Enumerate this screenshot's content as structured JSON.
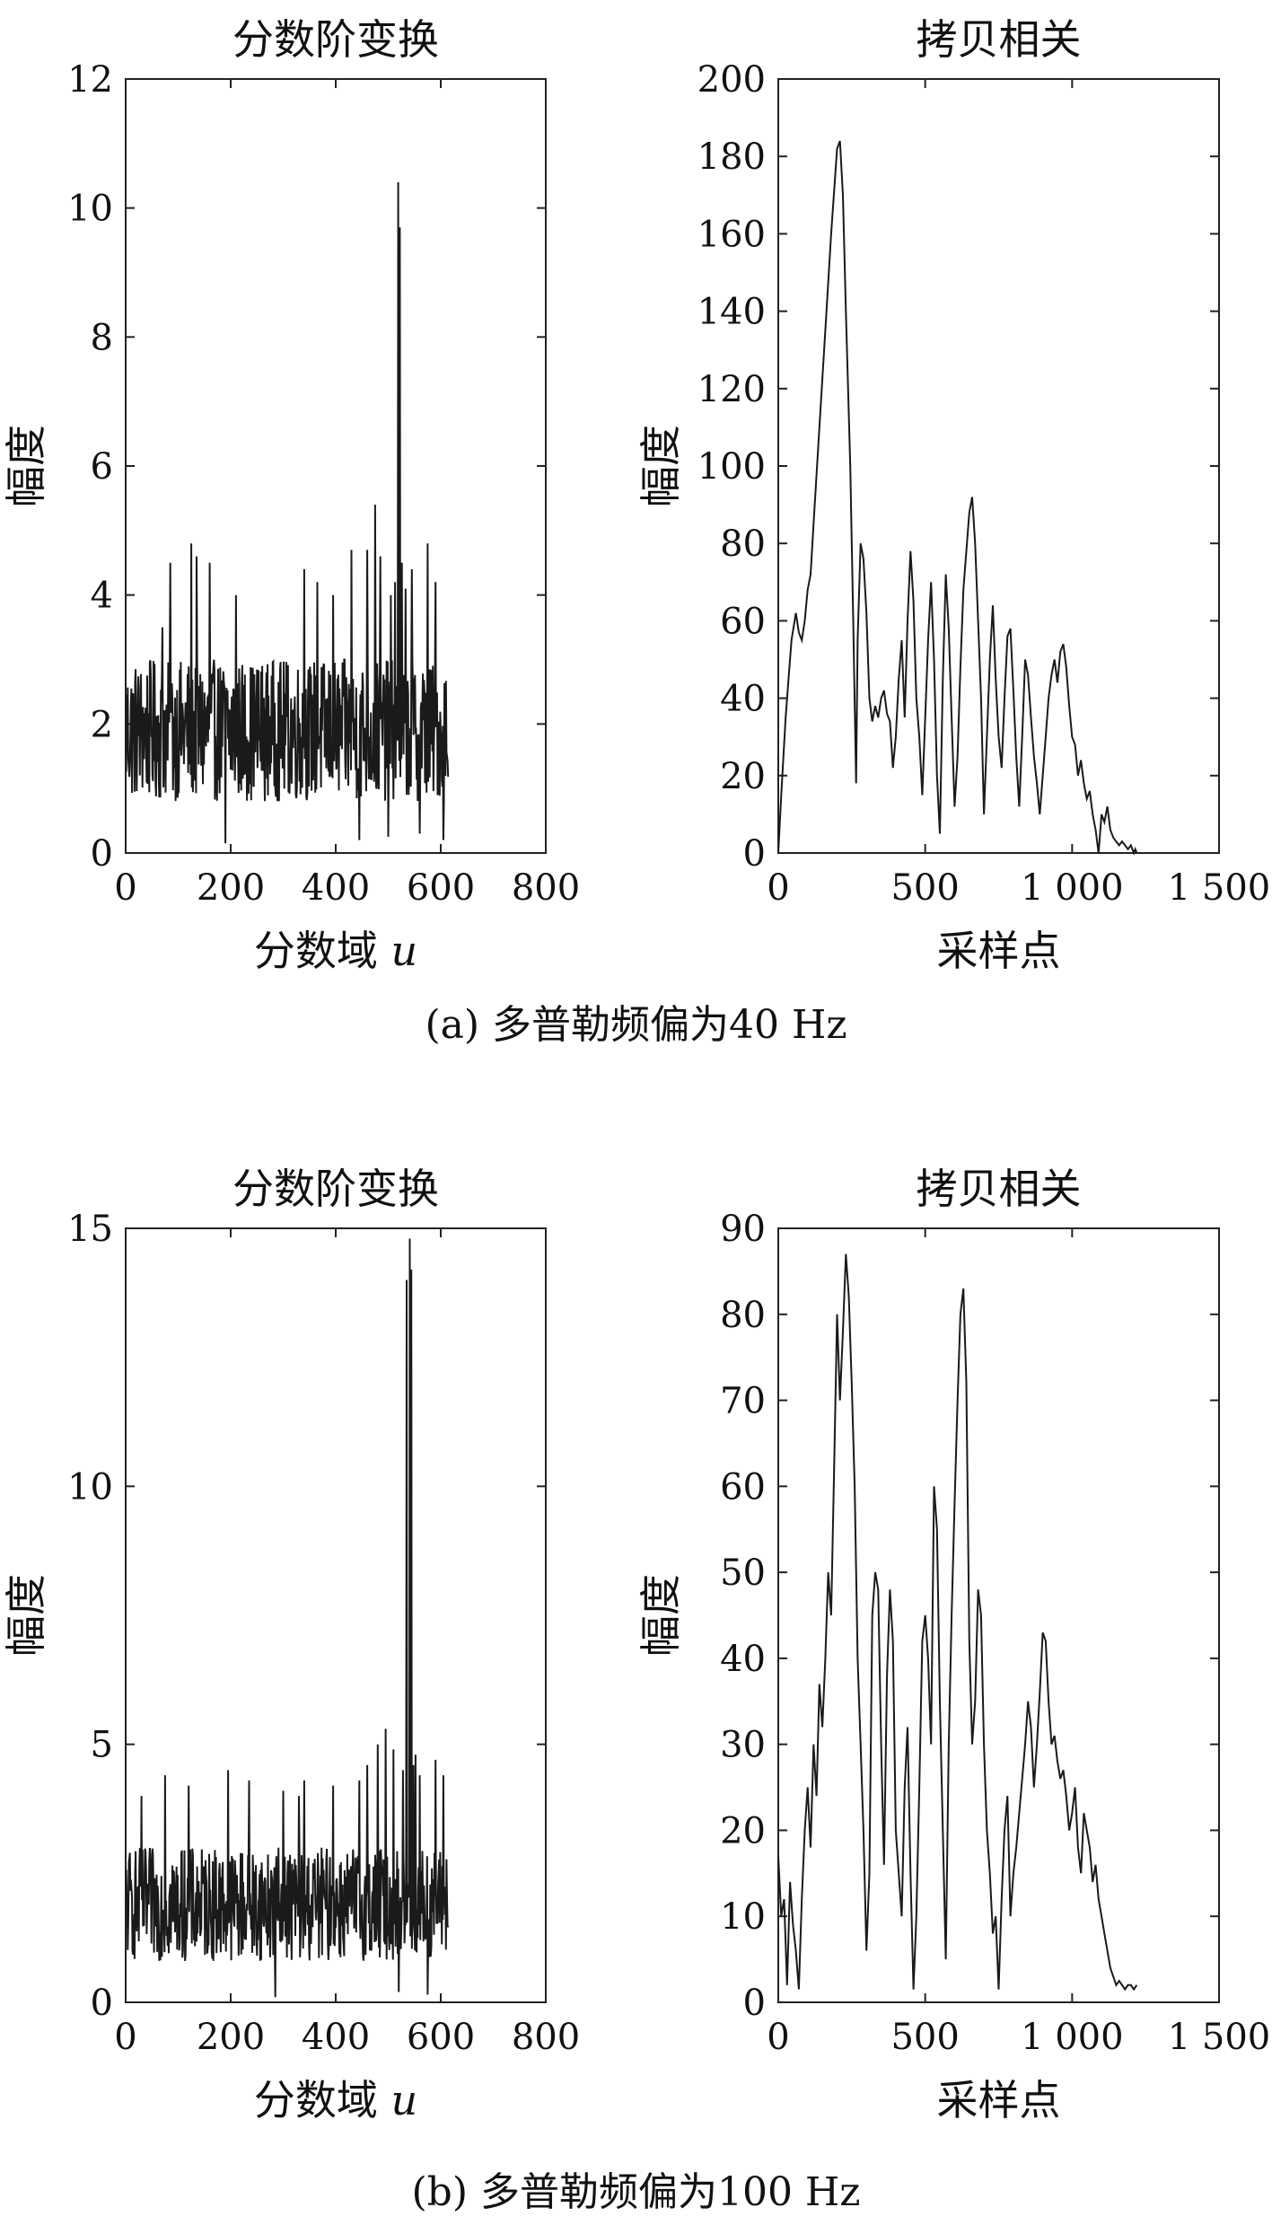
{
  "captions": {
    "a": "(a) 多普勒频偏为40 Hz",
    "b": "(b) 多普勒频偏为100 Hz"
  },
  "chart_data": [
    {
      "id": "a-frft",
      "type": "line",
      "title": "分数阶变换",
      "xlabel": "分数域 u",
      "ylabel": "幅度",
      "xlim": [
        0,
        800
      ],
      "ylim": [
        0,
        12
      ],
      "xticks": [
        0,
        200,
        400,
        600,
        800
      ],
      "yticks": [
        0,
        2,
        4,
        6,
        8,
        10,
        12
      ],
      "xtick_labels": [
        "0",
        "200",
        "400",
        "600",
        "800"
      ],
      "ytick_labels": [
        "0",
        "2",
        "4",
        "6",
        "8",
        "10",
        "12"
      ],
      "series": [
        {
          "noise": {
            "n": 615,
            "x_start": 0,
            "x_end": 614,
            "mean": 1.9,
            "amp": 1.1,
            "min": 0.15,
            "max": 4.8
          },
          "x": [
            70,
            85,
            125,
            135,
            160,
            190,
            210,
            340,
            365,
            395,
            430,
            445,
            460,
            475,
            485,
            500,
            505,
            513,
            519,
            522,
            526,
            533,
            545,
            560,
            575,
            590,
            605,
            612
          ],
          "y": [
            3.5,
            4.5,
            4.8,
            4.6,
            4.5,
            0.15,
            4.0,
            4.4,
            4.2,
            4.0,
            4.7,
            0.2,
            4.7,
            5.4,
            4.6,
            0.25,
            4.0,
            4.2,
            10.4,
            9.7,
            4.5,
            4.1,
            4.4,
            0.3,
            4.8,
            4.2,
            0.2,
            1.5
          ]
        }
      ]
    },
    {
      "id": "a-xcorr",
      "type": "line",
      "title": "拷贝相关",
      "xlabel": "采样点",
      "ylabel": "幅度",
      "xlim": [
        0,
        1500
      ],
      "ylim": [
        0,
        200
      ],
      "xticks": [
        0,
        500,
        1000,
        1500
      ],
      "yticks": [
        0,
        20,
        40,
        60,
        80,
        100,
        120,
        140,
        160,
        180,
        200
      ],
      "xtick_labels": [
        "0",
        "500",
        "1 000",
        "1 500"
      ],
      "ytick_labels": [
        "0",
        "20",
        "40",
        "60",
        "80",
        "100",
        "120",
        "140",
        "160",
        "180",
        "200"
      ],
      "series": [
        {
          "x": [
            0,
            10,
            25,
            45,
            60,
            70,
            80,
            90,
            100,
            110,
            120,
            140,
            160,
            180,
            200,
            210,
            220,
            230,
            245,
            255,
            265,
            270,
            280,
            290,
            300,
            310,
            320,
            330,
            340,
            350,
            360,
            370,
            380,
            390,
            400,
            410,
            420,
            430,
            440,
            450,
            460,
            470,
            480,
            490,
            500,
            510,
            520,
            530,
            540,
            550,
            560,
            570,
            580,
            590,
            600,
            610,
            620,
            630,
            640,
            650,
            660,
            670,
            680,
            690,
            700,
            710,
            720,
            730,
            740,
            750,
            760,
            770,
            780,
            790,
            800,
            810,
            820,
            830,
            840,
            850,
            860,
            870,
            880,
            890,
            900,
            910,
            920,
            930,
            940,
            950,
            960,
            970,
            980,
            990,
            1000,
            1010,
            1020,
            1030,
            1040,
            1050,
            1060,
            1070,
            1080,
            1090,
            1100,
            1110,
            1120,
            1130,
            1140,
            1150,
            1160,
            1170,
            1180,
            1190,
            1200,
            1210,
            1215,
            1220
          ],
          "y": [
            0,
            15,
            35,
            55,
            62,
            57,
            55,
            60,
            68,
            72,
            85,
            110,
            135,
            160,
            182,
            184,
            170,
            140,
            100,
            60,
            18,
            55,
            80,
            76,
            62,
            40,
            34,
            38,
            35,
            40,
            42,
            36,
            34,
            22,
            30,
            45,
            55,
            35,
            60,
            78,
            65,
            40,
            30,
            15,
            35,
            55,
            70,
            50,
            20,
            5,
            45,
            72,
            58,
            35,
            12,
            25,
            48,
            68,
            78,
            88,
            92,
            80,
            60,
            40,
            10,
            30,
            50,
            64,
            45,
            30,
            22,
            40,
            56,
            58,
            42,
            25,
            12,
            30,
            50,
            46,
            35,
            25,
            18,
            10,
            20,
            30,
            40,
            46,
            50,
            44,
            52,
            54,
            48,
            38,
            30,
            28,
            20,
            24,
            18,
            14,
            16,
            10,
            6,
            0,
            10,
            8,
            12,
            6,
            4,
            3,
            2,
            3,
            2,
            1,
            2,
            0,
            1,
            0
          ]
        }
      ]
    },
    {
      "id": "b-frft",
      "type": "line",
      "title": "分数阶变换",
      "xlabel": "分数域 u",
      "ylabel": "幅度",
      "xlim": [
        0,
        800
      ],
      "ylim": [
        0,
        15
      ],
      "xticks": [
        0,
        200,
        400,
        600,
        800
      ],
      "yticks": [
        0,
        5,
        10,
        15
      ],
      "xtick_labels": [
        "0",
        "200",
        "400",
        "600",
        "800"
      ],
      "ytick_labels": [
        "0",
        "5",
        "10",
        "15"
      ],
      "series": [
        {
          "noise": {
            "n": 615,
            "x_start": 0,
            "x_end": 614,
            "mean": 1.9,
            "amp": 1.1,
            "min": 0.1,
            "max": 4.6
          },
          "x": [
            30,
            75,
            120,
            195,
            235,
            285,
            300,
            330,
            340,
            395,
            445,
            460,
            480,
            495,
            510,
            520,
            528,
            535,
            541,
            544,
            548,
            552,
            560,
            575,
            590,
            605,
            612
          ],
          "y": [
            4.0,
            4.4,
            4.2,
            4.5,
            4.3,
            0.1,
            4.1,
            4.0,
            4.3,
            4.2,
            4.3,
            4.6,
            5.0,
            5.3,
            4.9,
            0.2,
            4.5,
            14.0,
            14.8,
            14.2,
            4.6,
            4.8,
            4.4,
            0.15,
            4.7,
            4.4,
            2.0
          ]
        }
      ]
    },
    {
      "id": "b-xcorr",
      "type": "line",
      "title": "拷贝相关",
      "xlabel": "采样点",
      "ylabel": "幅度",
      "xlim": [
        0,
        1500
      ],
      "ylim": [
        0,
        90
      ],
      "xticks": [
        0,
        500,
        1000,
        1500
      ],
      "yticks": [
        0,
        10,
        20,
        30,
        40,
        50,
        60,
        70,
        80,
        90
      ],
      "xtick_labels": [
        "0",
        "500",
        "1 000",
        "1 500"
      ],
      "ytick_labels": [
        "0",
        "10",
        "20",
        "30",
        "40",
        "50",
        "60",
        "70",
        "80",
        "90"
      ],
      "series": [
        {
          "x": [
            0,
            10,
            20,
            30,
            40,
            50,
            60,
            70,
            80,
            90,
            100,
            110,
            120,
            130,
            140,
            150,
            160,
            170,
            180,
            190,
            200,
            210,
            220,
            230,
            240,
            250,
            260,
            270,
            280,
            290,
            300,
            310,
            320,
            330,
            340,
            350,
            360,
            370,
            380,
            390,
            400,
            410,
            420,
            430,
            440,
            450,
            460,
            470,
            480,
            490,
            500,
            510,
            520,
            530,
            540,
            550,
            560,
            570,
            580,
            590,
            600,
            610,
            620,
            630,
            640,
            650,
            660,
            670,
            680,
            690,
            700,
            710,
            720,
            730,
            740,
            750,
            760,
            770,
            780,
            790,
            800,
            810,
            820,
            830,
            840,
            850,
            860,
            870,
            880,
            890,
            900,
            910,
            920,
            930,
            940,
            950,
            960,
            970,
            980,
            990,
            1000,
            1010,
            1020,
            1030,
            1040,
            1050,
            1060,
            1070,
            1080,
            1090,
            1100,
            1110,
            1120,
            1130,
            1140,
            1150,
            1160,
            1170,
            1180,
            1190,
            1200,
            1210,
            1220
          ],
          "y": [
            17,
            10,
            12,
            2,
            14,
            9,
            6,
            1.5,
            12,
            20,
            25,
            18,
            30,
            24,
            37,
            32,
            40,
            50,
            45,
            62,
            80,
            70,
            78,
            87,
            82,
            72,
            60,
            40,
            30,
            20,
            6,
            15,
            45,
            50,
            48,
            30,
            16,
            38,
            48,
            42,
            20,
            15,
            10,
            25,
            32,
            15,
            1.5,
            10,
            25,
            42,
            45,
            40,
            30,
            60,
            55,
            35,
            20,
            5,
            30,
            45,
            58,
            70,
            80,
            83,
            72,
            42,
            30,
            35,
            48,
            45,
            30,
            20,
            15,
            8,
            10,
            1.5,
            12,
            20,
            24,
            10,
            15,
            18,
            22,
            26,
            30,
            35,
            32,
            25,
            30,
            36,
            43,
            42,
            35,
            30,
            31,
            28,
            26,
            27,
            24,
            20,
            22,
            25,
            18,
            15,
            22,
            20,
            18,
            14,
            16,
            12,
            10,
            8,
            6,
            4,
            3,
            2,
            2.5,
            2,
            1.5,
            2,
            2,
            1.5,
            2
          ]
        }
      ]
    }
  ]
}
